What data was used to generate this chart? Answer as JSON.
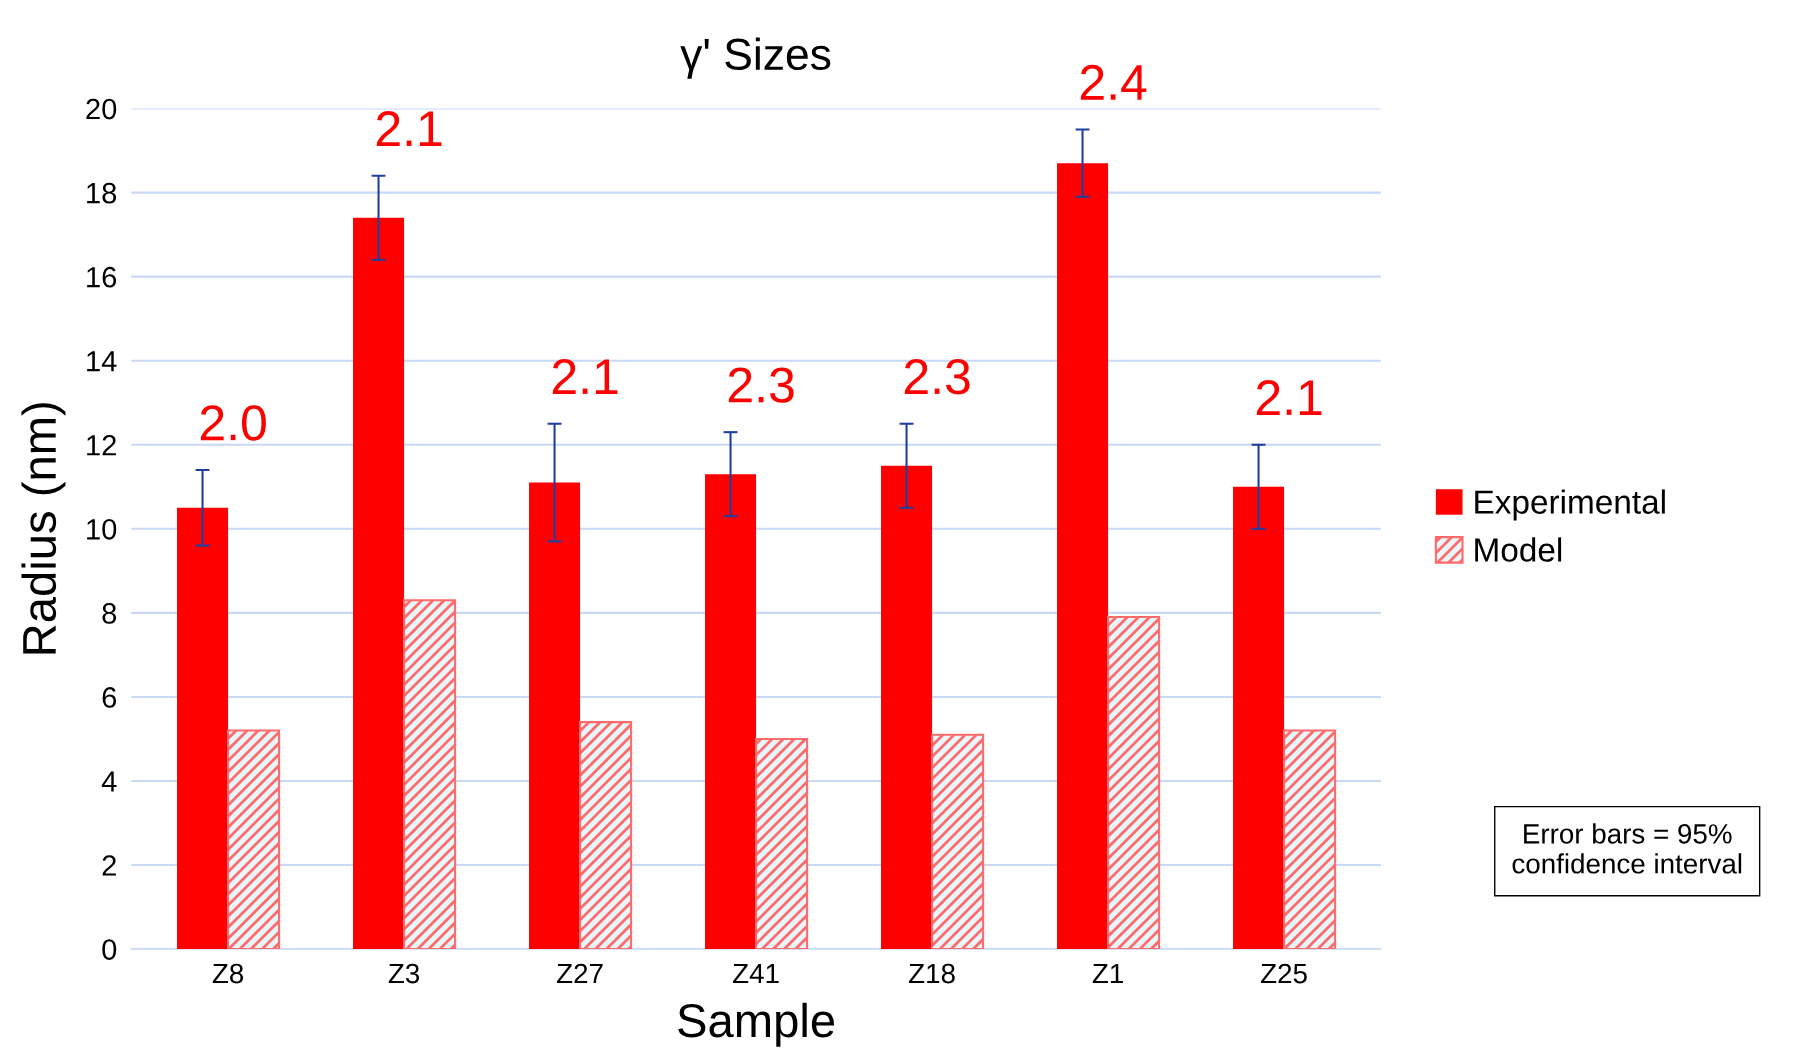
{
  "chart_data": {
    "type": "bar",
    "title": "γ' Sizes",
    "xlabel": "Sample",
    "ylabel": "Radius (nm)",
    "categories": [
      "Z8",
      "Z3",
      "Z27",
      "Z41",
      "Z18",
      "Z1",
      "Z25"
    ],
    "series": [
      {
        "name": "Experimental",
        "color": "#ff0000",
        "values": [
          10.5,
          17.4,
          11.1,
          11.3,
          11.5,
          18.7,
          11.0
        ],
        "errors": [
          0.9,
          1.0,
          1.4,
          1.0,
          1.0,
          0.8,
          1.0
        ]
      },
      {
        "name": "Model",
        "color": "#ff6b6b",
        "values": [
          5.2,
          8.3,
          5.4,
          5.0,
          5.1,
          7.9,
          5.2
        ]
      }
    ],
    "ylim": [
      0,
      20
    ],
    "yticks": [
      0,
      2,
      4,
      6,
      8,
      10,
      12,
      14,
      16,
      18,
      20
    ],
    "grid": "y",
    "legend": "right",
    "annotations": [
      "2.0",
      "2.1",
      "2.1",
      "2.3",
      "2.3",
      "2.4",
      "2.1",
      "Error bars = 95% confidence interval"
    ]
  }
}
